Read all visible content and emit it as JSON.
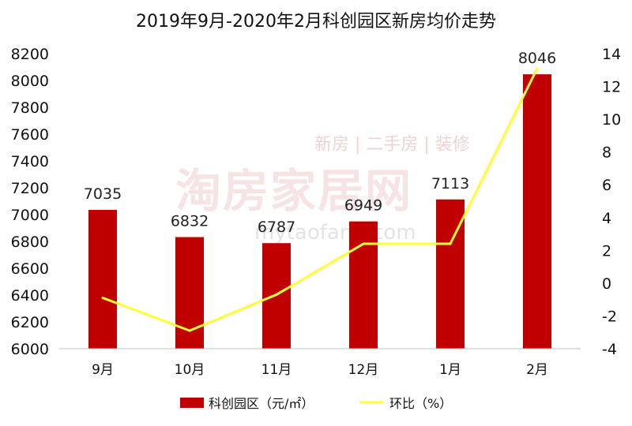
{
  "chart_data": {
    "type": "bar",
    "title": "2019年9月-2020年2月科创园区新房均价走势",
    "categories": [
      "9月",
      "10月",
      "11月",
      "12月",
      "1月",
      "2月"
    ],
    "series": [
      {
        "name": "科创园区（元/㎡）",
        "type": "bar",
        "axis": "left",
        "values": [
          7035,
          6832,
          6787,
          6949,
          7113,
          8046
        ],
        "color": "#c00000"
      },
      {
        "name": "环比（%）",
        "type": "line",
        "axis": "right",
        "values": [
          -0.9,
          -2.9,
          -0.7,
          2.4,
          2.4,
          13.1
        ],
        "color": "#ffff33"
      }
    ],
    "y_left": {
      "min": 6000,
      "max": 8200,
      "step": 200,
      "ticks": [
        "6000",
        "6200",
        "6400",
        "6600",
        "6800",
        "7000",
        "7200",
        "7400",
        "7600",
        "7800",
        "8000",
        "8200"
      ]
    },
    "y_right": {
      "min": -4,
      "max": 14,
      "step": 2,
      "ticks": [
        "-4",
        "-2",
        "0",
        "2",
        "4",
        "6",
        "8",
        "10",
        "12",
        "14"
      ]
    },
    "grid": false,
    "legend_position": "bottom"
  },
  "watermark": {
    "main": "淘房家居网",
    "sub": "新房 | 二手房 | 装修",
    "url": "mytaofang.com"
  }
}
